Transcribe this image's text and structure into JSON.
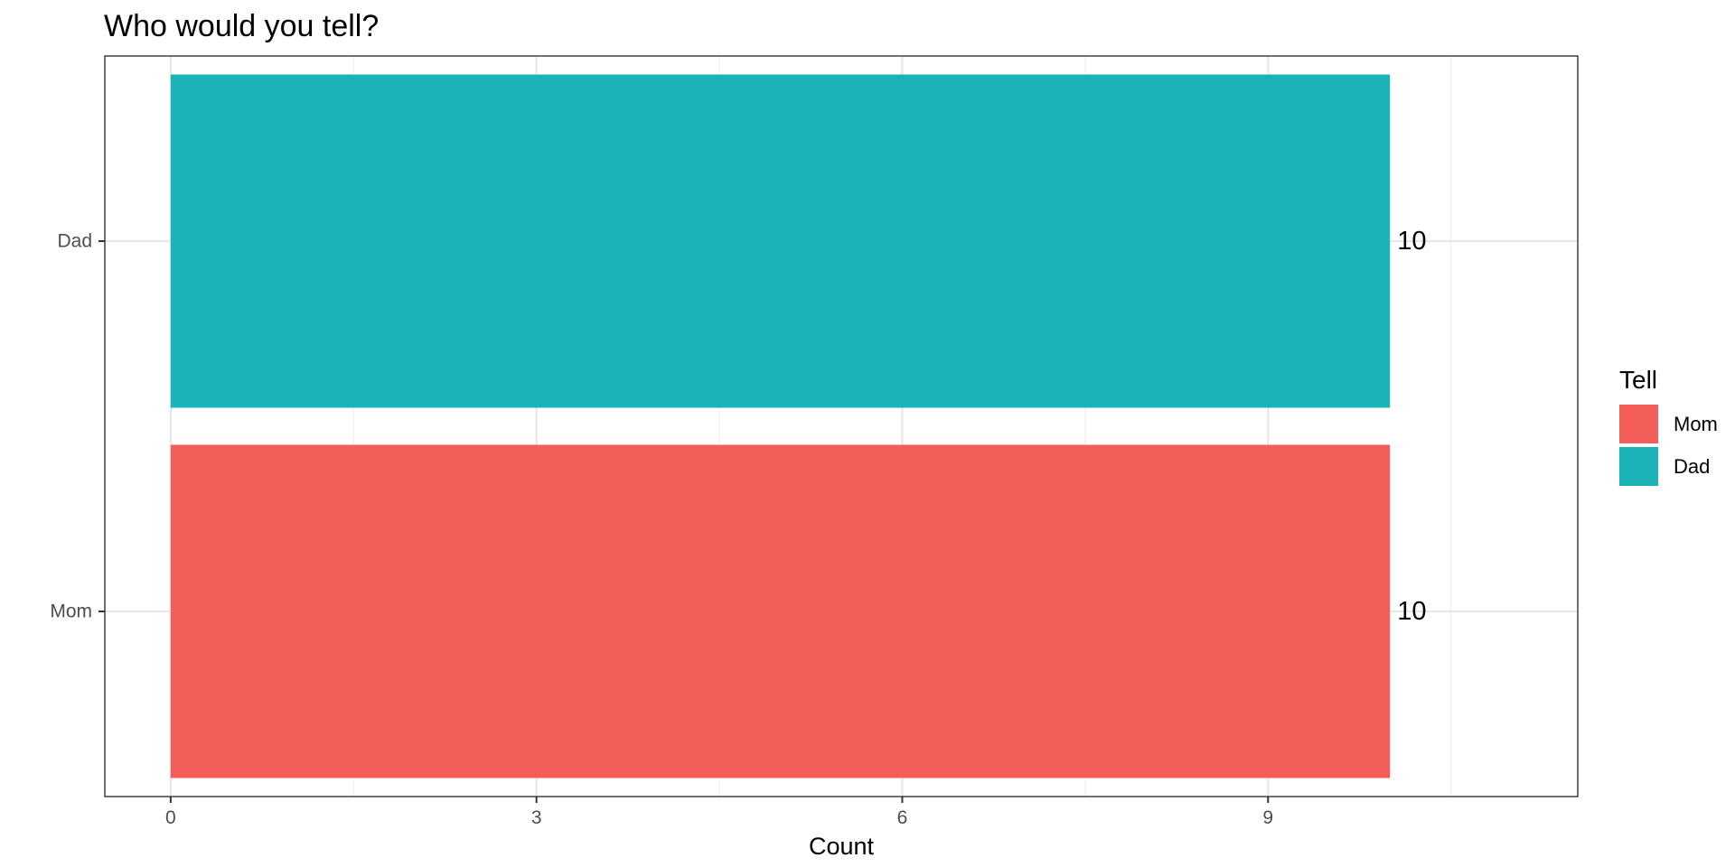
{
  "chart_data": {
    "type": "bar",
    "orientation": "horizontal",
    "title": "Who would you tell?",
    "xlabel": "Count",
    "ylabel": "",
    "categories": [
      "Mom",
      "Dad"
    ],
    "values": [
      10,
      10
    ],
    "data_labels": [
      "10",
      "10"
    ],
    "colors": [
      "#F35E5A",
      "#19B3B8"
    ],
    "xlim": [
      -0.54,
      11.54
    ],
    "xticks": [
      0,
      3,
      6,
      9
    ],
    "grid": true,
    "legend": {
      "title": "Tell",
      "placement": "right",
      "entries": [
        {
          "label": "Mom",
          "color": "#F35E5A"
        },
        {
          "label": "Dad",
          "color": "#19B3B8"
        }
      ]
    }
  }
}
